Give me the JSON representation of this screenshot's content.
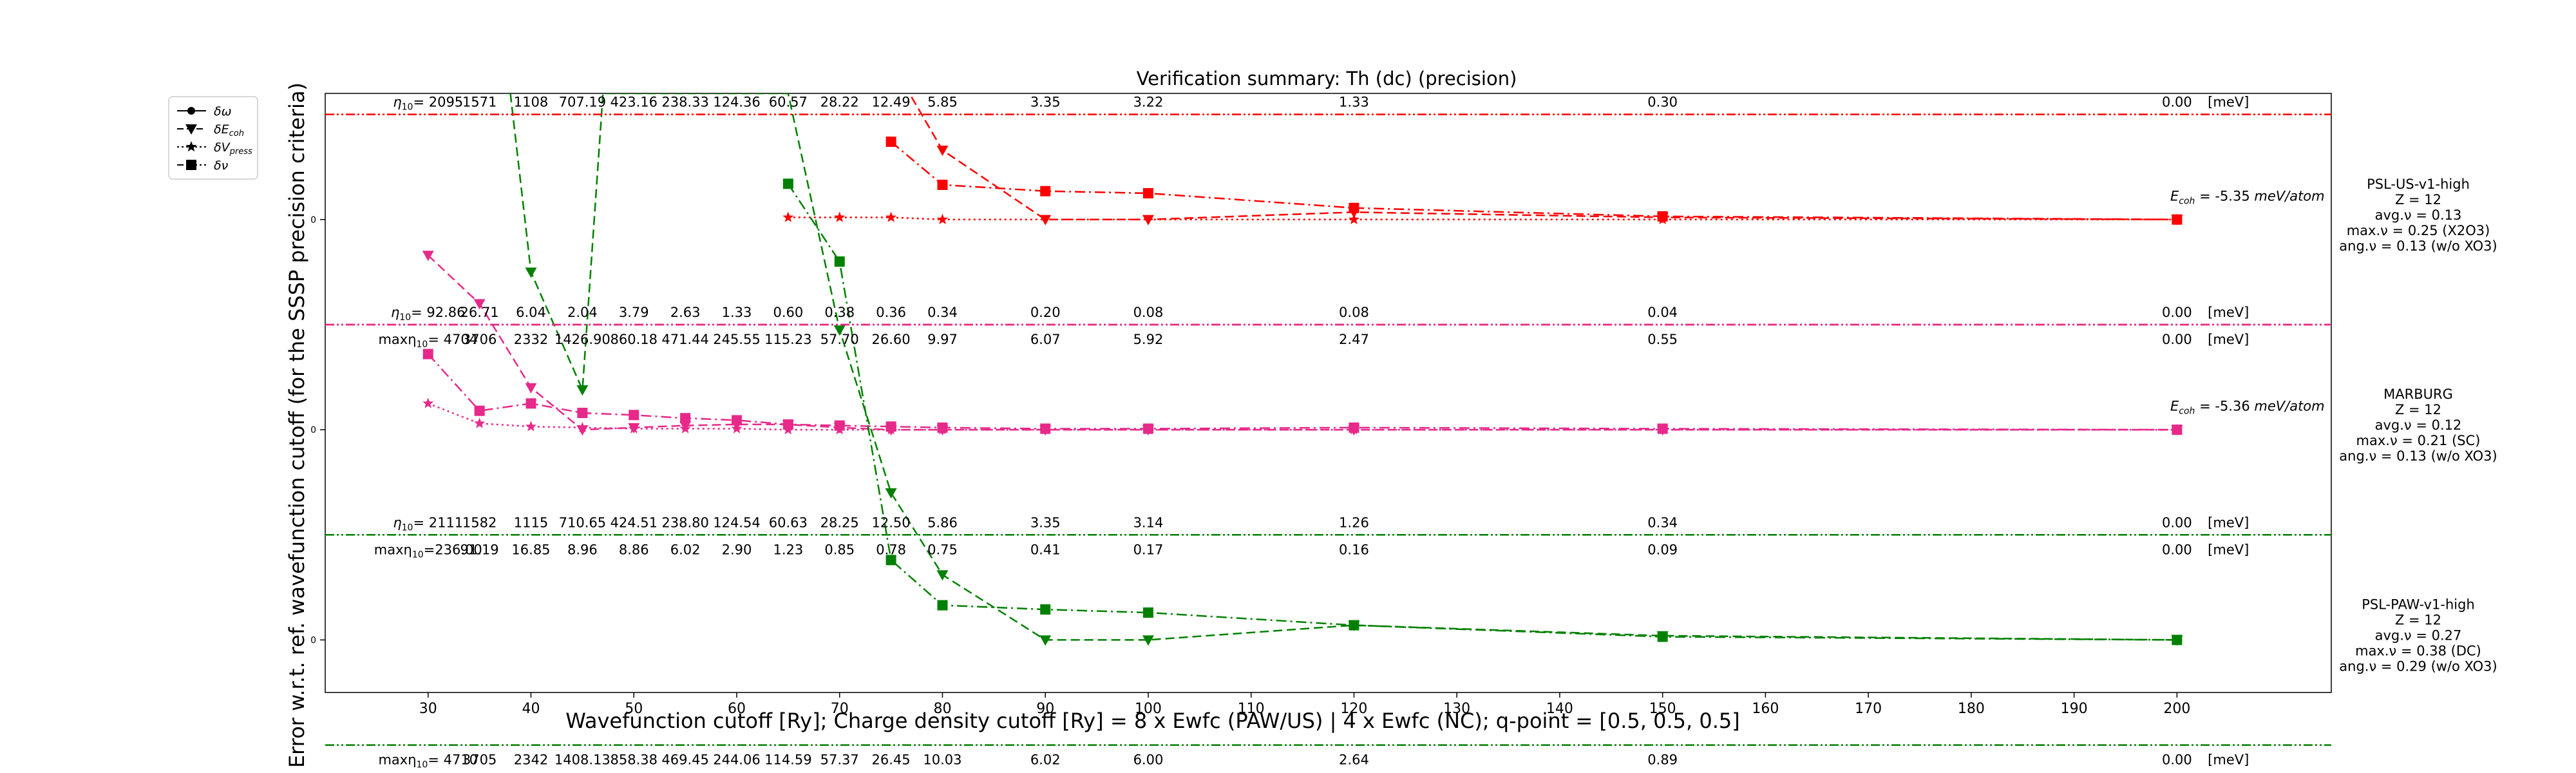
{
  "chart_data": {
    "type": "line",
    "title": "Verification summary: Th (dc) (precision)",
    "xlabel": "Wavefunction cutoff [Ry]; Charge density cutoff [Ry] = 8 x Ewfc (PAW/US) | 4 x Ewfc (NC); q-point = [0.5, 0.5, 0.5]",
    "ylabel": "Error w.r.t. ref. wavefunction cutoff (for the SSSP precision criteria)",
    "xlim": [
      20,
      215
    ],
    "ylim": [
      -0.5,
      5.2
    ],
    "xticks": [
      30,
      40,
      50,
      60,
      70,
      80,
      90,
      100,
      110,
      120,
      130,
      140,
      150,
      160,
      170,
      180,
      190,
      200
    ],
    "ytick_label": "0",
    "grid": false,
    "legend_position": "outside-top-left",
    "legend": [
      {
        "label": "δω",
        "sub": "",
        "style": "solid",
        "marker": "circle"
      },
      {
        "label": "δE",
        "sub": "coh",
        "style": "dashed",
        "marker": "triangle-down"
      },
      {
        "label": "δV",
        "sub": "press",
        "style": "dotted",
        "marker": "star"
      },
      {
        "label": "δν",
        "sub": "",
        "style": "dashdot",
        "marker": "square"
      }
    ],
    "cutoffs": [
      30,
      35,
      40,
      45,
      50,
      55,
      60,
      65,
      70,
      75,
      80,
      90,
      100,
      120,
      150,
      200
    ],
    "unit_label": "[meV]",
    "panels": [
      {
        "name": "PSL-US-v1-high",
        "color": "#ff0000",
        "baseline": 4,
        "eta_prefix": "η",
        "eta_sub": "10",
        "eta_label": "= 2095",
        "eta_values": [
          "1571",
          "1108",
          "707.19",
          "423.16",
          "238.33",
          "124.36",
          "60.57",
          "28.22",
          "12.49",
          "5.85",
          "3.35",
          "3.22",
          "1.33",
          "0.30",
          "0.00"
        ],
        "eta_x": [
          35,
          40,
          45,
          50,
          55,
          60,
          65,
          70,
          75,
          80,
          90,
          100,
          120,
          150,
          200
        ],
        "max_prefix": "maxη",
        "max_sub": "10",
        "max_label": "= 4704",
        "max_values": [
          "3706",
          "2332",
          "1426.90",
          "860.18",
          "471.44",
          "245.55",
          "115.23",
          "57.70",
          "26.60",
          "9.97",
          "6.07",
          "5.92",
          "2.47",
          "0.55",
          "0.00"
        ],
        "max_x": [
          35,
          40,
          45,
          50,
          55,
          60,
          65,
          70,
          75,
          80,
          90,
          100,
          120,
          150,
          200
        ],
        "ecoh_prefix": "E",
        "ecoh_sub": "coh",
        "ecoh_value": " = -5.35 ",
        "ecoh_unit": "meV/atom",
        "info": [
          "PSL-US-v1-high",
          "Z = 12",
          "avg.ν = 0.13",
          "max.ν = 0.25 (X2O3)",
          "ang.ν = 0.13 (w/o XO3)"
        ],
        "series": {
          "nu": {
            "x": [
              75,
              80,
              90,
              100,
              120,
              150,
              200
            ],
            "y": [
              0.74,
              0.33,
              0.27,
              0.25,
              0.11,
              0.03,
              0.0
            ]
          },
          "ecoh": {
            "x": [
              75,
              80,
              90,
              100,
              120,
              150,
              200
            ],
            "y": [
              1.5,
              0.66,
              0.0,
              0.0,
              0.07,
              0.02,
              0.0
            ]
          },
          "press": {
            "x": [
              65,
              70,
              75,
              80,
              120,
              150,
              200
            ],
            "y": [
              0.02,
              0.02,
              0.02,
              0.0,
              0.0,
              0.0,
              0.0
            ]
          }
        }
      },
      {
        "name": "MARBURG",
        "color": "#e7298a",
        "baseline": 2,
        "eta_prefix": "η",
        "eta_sub": "10",
        "eta_label": "= 92.86",
        "eta_values": [
          "26.71",
          "6.04",
          "2.04",
          "3.79",
          "2.63",
          "1.33",
          "0.60",
          "0.38",
          "0.36",
          "0.34",
          "0.20",
          "0.08",
          "0.08",
          "0.04",
          "0.00"
        ],
        "eta_x": [
          35,
          40,
          45,
          50,
          55,
          60,
          65,
          70,
          75,
          80,
          90,
          100,
          120,
          150,
          200
        ],
        "max_prefix": "maxη",
        "max_sub": "10",
        "max_label": "=236.00",
        "max_values": [
          "91.19",
          "16.85",
          "8.96",
          "8.86",
          "6.02",
          "2.90",
          "1.23",
          "0.85",
          "0.78",
          "0.75",
          "0.41",
          "0.17",
          "0.16",
          "0.09",
          "0.00"
        ],
        "max_x": [
          35,
          40,
          45,
          50,
          55,
          60,
          65,
          70,
          75,
          80,
          90,
          100,
          120,
          150,
          200
        ],
        "ecoh_prefix": "E",
        "ecoh_sub": "coh",
        "ecoh_value": " = -5.36 ",
        "ecoh_unit": "meV/atom",
        "info": [
          "MARBURG",
          "Z = 12",
          "avg.ν = 0.12",
          "max.ν = 0.21 (SC)",
          "ang.ν = 0.13 (w/o XO3)"
        ],
        "series": {
          "nu": {
            "x": [
              30,
              35,
              40,
              45,
              50,
              55,
              60,
              65,
              70,
              75,
              80,
              90,
              100,
              120,
              150,
              200
            ],
            "y": [
              0.72,
              0.18,
              0.25,
              0.16,
              0.14,
              0.11,
              0.09,
              0.05,
              0.04,
              0.03,
              0.02,
              0.01,
              0.01,
              0.02,
              0.01,
              0.0
            ]
          },
          "ecoh": {
            "x": [
              30,
              35,
              40,
              45,
              50,
              55,
              60,
              65,
              70,
              75,
              80,
              90,
              100,
              120,
              150,
              200
            ],
            "y": [
              1.66,
              1.2,
              0.4,
              0.0,
              0.02,
              0.04,
              0.05,
              0.05,
              0.02,
              0.0,
              0.0,
              0.0,
              0.0,
              0.0,
              0.0,
              0.0
            ]
          },
          "press": {
            "x": [
              30,
              35,
              40,
              45,
              50,
              55,
              60,
              65,
              70,
              75,
              80,
              90,
              100,
              120,
              150,
              200
            ],
            "y": [
              0.25,
              0.06,
              0.03,
              0.02,
              0.01,
              0.01,
              0.01,
              0.0,
              0.0,
              0.0,
              0.0,
              0.0,
              0.0,
              0.0,
              0.0,
              0.0
            ]
          }
        }
      },
      {
        "name": "PSL-PAW-v1-high",
        "color": "#008000",
        "baseline": 0,
        "eta_prefix": "η",
        "eta_sub": "10",
        "eta_label": "= 2111",
        "eta_values": [
          "1582",
          "1115",
          "710.65",
          "424.51",
          "238.80",
          "124.54",
          "60.63",
          "28.25",
          "12.50",
          "5.86",
          "3.35",
          "3.14",
          "1.26",
          "0.34",
          "0.00"
        ],
        "eta_x": [
          35,
          40,
          45,
          50,
          55,
          60,
          65,
          70,
          75,
          80,
          90,
          100,
          120,
          150,
          200
        ],
        "max_prefix": "maxη",
        "max_sub": "10",
        "max_label": "= 4710",
        "max_values": [
          "3705",
          "2342",
          "1408.13",
          "858.38",
          "469.45",
          "244.06",
          "114.59",
          "57.37",
          "26.45",
          "10.03",
          "6.02",
          "6.00",
          "2.64",
          "0.89",
          "0.00"
        ],
        "max_x": [
          35,
          40,
          45,
          50,
          55,
          60,
          65,
          70,
          75,
          80,
          90,
          100,
          120,
          150,
          200
        ],
        "ecoh_prefix": "",
        "ecoh_sub": "",
        "ecoh_value": "",
        "ecoh_unit": "",
        "info": [
          "PSL-PAW-v1-high",
          "Z = 12",
          "avg.ν = 0.27",
          "max.ν = 0.38 (DC)",
          "ang.ν = 0.29 (w/o XO3)"
        ],
        "series": {
          "nu": {
            "x": [
              65,
              70,
              75,
              80,
              90,
              100,
              120,
              150,
              200
            ],
            "y": [
              4.34,
              3.6,
              0.76,
              0.33,
              0.29,
              0.26,
              0.14,
              0.03,
              0.0
            ]
          },
          "ecoh": {
            "x": [
              38,
              40,
              45,
              47,
              65,
              70,
              75,
              80,
              90,
              100,
              120,
              150,
              200
            ],
            "y": [
              5.2,
              3.5,
              2.38,
              5.2,
              5.2,
              2.95,
              1.4,
              0.62,
              0.0,
              0.0,
              0.14,
              0.04,
              0.0
            ]
          }
        }
      }
    ]
  }
}
